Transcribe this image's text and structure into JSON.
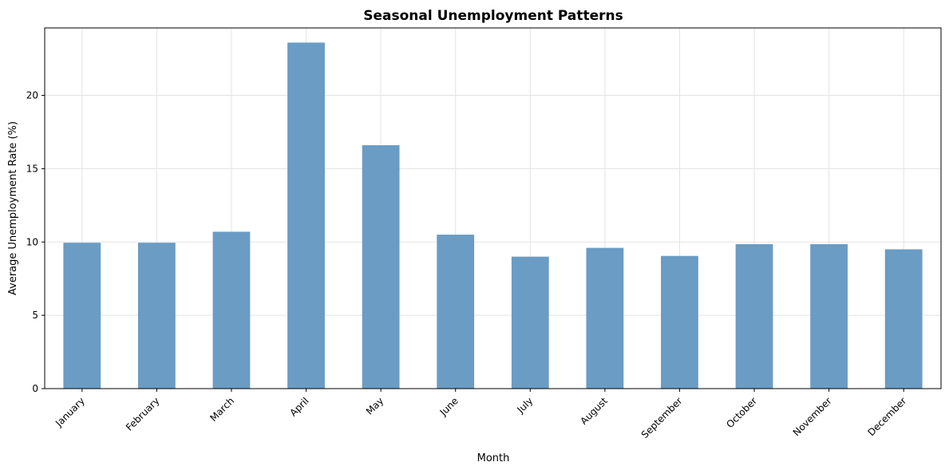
{
  "chart_data": {
    "type": "bar",
    "title": "Seasonal Unemployment Patterns",
    "xlabel": "Month",
    "ylabel": "Average Unemployment Rate (%)",
    "categories": [
      "January",
      "February",
      "March",
      "April",
      "May",
      "June",
      "July",
      "August",
      "September",
      "October",
      "November",
      "December"
    ],
    "values": [
      9.95,
      9.95,
      10.7,
      23.6,
      16.6,
      10.5,
      9.0,
      9.6,
      9.05,
      9.85,
      9.85,
      9.5
    ],
    "yticks": [
      0,
      5,
      10,
      15,
      20
    ],
    "ylim": [
      0,
      24.6
    ],
    "grid": true,
    "legend": "none",
    "bar_color": "#6a9cc4",
    "grid_color": "#e3e3e3",
    "axis_color": "#000000"
  }
}
